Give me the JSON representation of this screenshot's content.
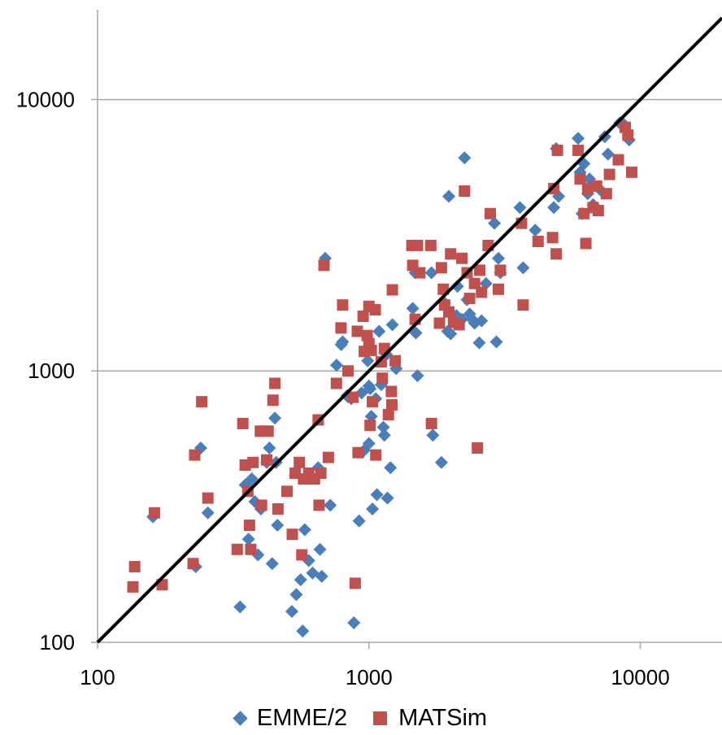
{
  "chart_data": {
    "type": "scatter",
    "x_scale": "log",
    "y_scale": "log",
    "xlim": [
      100,
      20000
    ],
    "ylim": [
      100,
      20000
    ],
    "x_ticks": [
      100,
      1000,
      10000
    ],
    "y_ticks": [
      100,
      1000,
      10000
    ],
    "x_tick_labels": [
      "100",
      "1000",
      "10000"
    ],
    "y_tick_labels": [
      "100",
      "1000",
      "10000"
    ],
    "grid": "horizontal",
    "legend_position": "bottom",
    "reference_line": {
      "type": "y=x",
      "color": "#000000"
    },
    "series": [
      {
        "name": "EMME/2",
        "marker": "diamond",
        "color": "#4a7ebb",
        "points": [
          [
            160,
            290
          ],
          [
            230,
            190
          ],
          [
            240,
            520
          ],
          [
            255,
            300
          ],
          [
            335,
            135
          ],
          [
            350,
            380
          ],
          [
            360,
            240
          ],
          [
            370,
            400
          ],
          [
            380,
            330
          ],
          [
            390,
            210
          ],
          [
            400,
            310
          ],
          [
            420,
            460
          ],
          [
            430,
            520
          ],
          [
            440,
            195
          ],
          [
            450,
            670
          ],
          [
            455,
            460
          ],
          [
            460,
            270
          ],
          [
            520,
            130
          ],
          [
            540,
            150
          ],
          [
            560,
            170
          ],
          [
            570,
            110
          ],
          [
            580,
            260
          ],
          [
            600,
            200
          ],
          [
            620,
            180
          ],
          [
            650,
            440
          ],
          [
            660,
            220
          ],
          [
            670,
            175
          ],
          [
            690,
            2600
          ],
          [
            720,
            320
          ],
          [
            760,
            1050
          ],
          [
            790,
            1250
          ],
          [
            800,
            1280
          ],
          [
            830,
            810
          ],
          [
            860,
            790
          ],
          [
            880,
            118
          ],
          [
            920,
            280
          ],
          [
            940,
            830
          ],
          [
            960,
            510
          ],
          [
            990,
            1090
          ],
          [
            1000,
            540
          ],
          [
            1000,
            880
          ],
          [
            1010,
            860
          ],
          [
            1020,
            680
          ],
          [
            1030,
            310
          ],
          [
            1060,
            790
          ],
          [
            1070,
            350
          ],
          [
            1090,
            1400
          ],
          [
            1110,
            890
          ],
          [
            1130,
            620
          ],
          [
            1140,
            580
          ],
          [
            1160,
            1150
          ],
          [
            1170,
            340
          ],
          [
            1200,
            440
          ],
          [
            1220,
            1480
          ],
          [
            1260,
            1020
          ],
          [
            1450,
            1700
          ],
          [
            1480,
            2300
          ],
          [
            1490,
            1380
          ],
          [
            1510,
            960
          ],
          [
            1700,
            2300
          ],
          [
            1720,
            580
          ],
          [
            1850,
            460
          ],
          [
            1900,
            1780
          ],
          [
            1950,
            1400
          ],
          [
            1970,
            4400
          ],
          [
            2000,
            1370
          ],
          [
            2100,
            1600
          ],
          [
            2120,
            2050
          ],
          [
            2200,
            1550
          ],
          [
            2250,
            6100
          ],
          [
            2300,
            1830
          ],
          [
            2350,
            1620
          ],
          [
            2400,
            1550
          ],
          [
            2450,
            1500
          ],
          [
            2550,
            1270
          ],
          [
            2600,
            1530
          ],
          [
            2700,
            2100
          ],
          [
            2900,
            3500
          ],
          [
            2950,
            1280
          ],
          [
            3000,
            2600
          ],
          [
            3050,
            2300
          ],
          [
            3600,
            4000
          ],
          [
            3700,
            2400
          ],
          [
            4100,
            3300
          ],
          [
            4800,
            4000
          ],
          [
            4900,
            6600
          ],
          [
            5000,
            4400
          ],
          [
            5900,
            7200
          ],
          [
            6000,
            5400
          ],
          [
            6100,
            3800
          ],
          [
            6200,
            5800
          ],
          [
            6400,
            4500
          ],
          [
            6500,
            5100
          ],
          [
            6700,
            4100
          ],
          [
            7200,
            4600
          ],
          [
            7400,
            7300
          ],
          [
            7600,
            6300
          ],
          [
            8400,
            8200
          ],
          [
            8700,
            8100
          ],
          [
            9100,
            7100
          ]
        ]
      },
      {
        "name": "MATSim",
        "marker": "square",
        "color": "#c0504d",
        "points": [
          [
            135,
            160
          ],
          [
            137,
            190
          ],
          [
            162,
            300
          ],
          [
            173,
            163
          ],
          [
            225,
            195
          ],
          [
            228,
            490
          ],
          [
            242,
            770
          ],
          [
            255,
            340
          ],
          [
            327,
            220
          ],
          [
            343,
            640
          ],
          [
            350,
            450
          ],
          [
            358,
            360
          ],
          [
            363,
            270
          ],
          [
            367,
            220
          ],
          [
            374,
            460
          ],
          [
            398,
            600
          ],
          [
            402,
            320
          ],
          [
            420,
            470
          ],
          [
            425,
            600
          ],
          [
            443,
            780
          ],
          [
            450,
            900
          ],
          [
            462,
            310
          ],
          [
            499,
            360
          ],
          [
            522,
            250
          ],
          [
            535,
            420
          ],
          [
            554,
            460
          ],
          [
            566,
            210
          ],
          [
            574,
            400
          ],
          [
            600,
            420
          ],
          [
            630,
            400
          ],
          [
            650,
            660
          ],
          [
            655,
            320
          ],
          [
            665,
            420
          ],
          [
            683,
            2450
          ],
          [
            709,
            480
          ],
          [
            759,
            900
          ],
          [
            789,
            1440
          ],
          [
            800,
            1750
          ],
          [
            837,
            1000
          ],
          [
            873,
            800
          ],
          [
            890,
            165
          ],
          [
            906,
            1400
          ],
          [
            912,
            500
          ],
          [
            952,
            1590
          ],
          [
            962,
            1180
          ],
          [
            985,
            1350
          ],
          [
            1000,
            1730
          ],
          [
            1000,
            1260
          ],
          [
            1010,
            630
          ],
          [
            1020,
            1190
          ],
          [
            1030,
            770
          ],
          [
            1055,
            1680
          ],
          [
            1060,
            490
          ],
          [
            1110,
            1080
          ],
          [
            1120,
            940
          ],
          [
            1140,
            1210
          ],
          [
            1180,
            690
          ],
          [
            1210,
            840
          ],
          [
            1215,
            750
          ],
          [
            1250,
            1090
          ],
          [
            1220,
            1990
          ],
          [
            1440,
            2900
          ],
          [
            1450,
            2450
          ],
          [
            1480,
            1550
          ],
          [
            1510,
            2900
          ],
          [
            1540,
            2300
          ],
          [
            1690,
            2900
          ],
          [
            1700,
            640
          ],
          [
            1820,
            1500
          ],
          [
            1850,
            2400
          ],
          [
            1880,
            2000
          ],
          [
            1900,
            1750
          ],
          [
            1970,
            1650
          ],
          [
            2000,
            2700
          ],
          [
            2050,
            1510
          ],
          [
            2150,
            1480
          ],
          [
            2200,
            2600
          ],
          [
            2250,
            4600
          ],
          [
            2300,
            2300
          ],
          [
            2350,
            1850
          ],
          [
            2450,
            2100
          ],
          [
            2510,
            520
          ],
          [
            2560,
            2350
          ],
          [
            2600,
            1950
          ],
          [
            2750,
            2900
          ],
          [
            2800,
            3800
          ],
          [
            3000,
            2000
          ],
          [
            3050,
            2350
          ],
          [
            3650,
            3500
          ],
          [
            3700,
            1750
          ],
          [
            4200,
            3000
          ],
          [
            4750,
            3100
          ],
          [
            4800,
            4700
          ],
          [
            4900,
            2700
          ],
          [
            4950,
            6500
          ],
          [
            5900,
            6500
          ],
          [
            6000,
            5100
          ],
          [
            6200,
            3800
          ],
          [
            6300,
            2950
          ],
          [
            6400,
            4700
          ],
          [
            6700,
            4000
          ],
          [
            6900,
            4800
          ],
          [
            7000,
            3900
          ],
          [
            7500,
            4500
          ],
          [
            7700,
            5300
          ],
          [
            8300,
            6000
          ],
          [
            8800,
            7900
          ],
          [
            9000,
            7400
          ],
          [
            9300,
            5400
          ]
        ]
      }
    ]
  }
}
